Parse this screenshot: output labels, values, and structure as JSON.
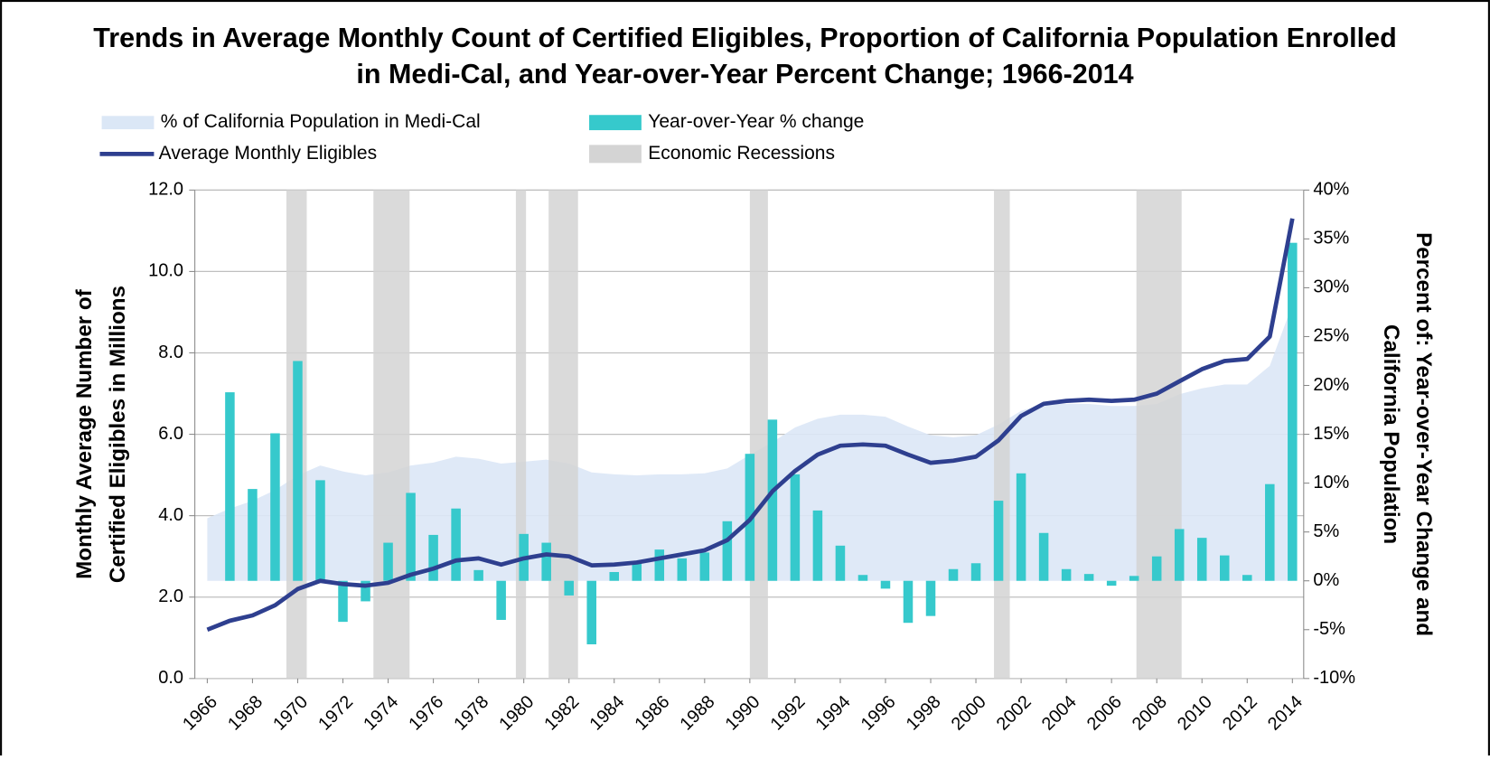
{
  "chart_data": {
    "type": "combo",
    "title": [
      "Trends in Average Monthly Count of Certified Eligibles, Proportion of California Population Enrolled",
      "in Medi-Cal, and Year-over-Year Percent Change; 1966-2014"
    ],
    "y_label": [
      "Monthly Average Number of",
      "Certified Eligibles in Millions"
    ],
    "y2_label": [
      "Percent of: Year-over-Year Change and",
      "California Population"
    ],
    "x": [
      1966,
      1967,
      1968,
      1969,
      1970,
      1971,
      1972,
      1973,
      1974,
      1975,
      1976,
      1977,
      1978,
      1979,
      1980,
      1981,
      1982,
      1983,
      1984,
      1985,
      1986,
      1987,
      1988,
      1989,
      1990,
      1991,
      1992,
      1993,
      1994,
      1995,
      1996,
      1997,
      1998,
      1999,
      2000,
      2001,
      2002,
      2003,
      2004,
      2005,
      2006,
      2007,
      2008,
      2009,
      2010,
      2011,
      2012,
      2013,
      2014
    ],
    "xlim": [
      1965.45,
      2014.5
    ],
    "xticks": [
      1966,
      1968,
      1970,
      1972,
      1974,
      1976,
      1978,
      1980,
      1982,
      1984,
      1986,
      1988,
      1990,
      1992,
      1994,
      1996,
      1998,
      2000,
      2002,
      2004,
      2006,
      2008,
      2010,
      2012,
      2014
    ],
    "ylim": [
      0,
      12
    ],
    "yticks": [
      {
        "value": 0,
        "label": "0.0"
      },
      {
        "value": 2,
        "label": "2.0"
      },
      {
        "value": 4,
        "label": "4.0"
      },
      {
        "value": 6,
        "label": "6.0"
      },
      {
        "value": 8,
        "label": "8.0"
      },
      {
        "value": 10,
        "label": "10.0"
      },
      {
        "value": 12,
        "label": "12.0"
      }
    ],
    "y2lim": [
      -10,
      40
    ],
    "y2ticks": [
      {
        "value": -10,
        "label": "-10%"
      },
      {
        "value": -5,
        "label": "-5%"
      },
      {
        "value": 0,
        "label": "0%"
      },
      {
        "value": 5,
        "label": "5%"
      },
      {
        "value": 10,
        "label": "10%"
      },
      {
        "value": 15,
        "label": "15%"
      },
      {
        "value": 20,
        "label": "20%"
      },
      {
        "value": 25,
        "label": "25%"
      },
      {
        "value": 30,
        "label": "30%"
      },
      {
        "value": 35,
        "label": "35%"
      },
      {
        "value": 40,
        "label": "40%"
      }
    ],
    "grid": true,
    "series": [
      {
        "name": "% of California Population in Medi-Cal",
        "type": "area",
        "axis": "y2",
        "color": "#dbe7f6",
        "values": [
          6.4,
          7.4,
          8.2,
          9.3,
          10.8,
          11.8,
          11.2,
          10.8,
          11.1,
          11.8,
          12.1,
          12.7,
          12.5,
          12.0,
          12.2,
          12.4,
          12.0,
          11.1,
          10.9,
          10.8,
          10.9,
          10.9,
          11.0,
          11.5,
          12.9,
          14.2,
          15.7,
          16.6,
          17.0,
          17.0,
          16.8,
          15.8,
          14.9,
          14.7,
          14.9,
          16.0,
          17.4,
          18.1,
          18.1,
          18.1,
          17.9,
          17.9,
          18.1,
          19.1,
          19.7,
          20.1,
          20.1,
          22.0,
          28.3
        ]
      },
      {
        "name": "Year-over-Year % change",
        "type": "bar",
        "axis": "y2",
        "color": "#36c9cc",
        "values": [
          null,
          19.3,
          9.4,
          15.1,
          22.5,
          10.3,
          -4.2,
          -2.1,
          3.9,
          9.0,
          4.7,
          7.4,
          1.1,
          -4.0,
          4.8,
          3.9,
          -1.5,
          -6.5,
          0.9,
          1.8,
          3.2,
          2.3,
          2.9,
          6.1,
          13.0,
          16.5,
          10.9,
          7.2,
          3.6,
          0.6,
          -0.8,
          -4.3,
          -3.6,
          1.2,
          1.8,
          8.2,
          11.0,
          4.9,
          1.2,
          0.7,
          -0.5,
          0.5,
          2.5,
          5.3,
          4.4,
          2.6,
          0.6,
          9.9,
          34.6
        ]
      },
      {
        "name": "Average Monthly Eligibles",
        "type": "line",
        "axis": "y",
        "color": "#2e3f8f",
        "values": [
          1.2,
          1.42,
          1.55,
          1.8,
          2.2,
          2.4,
          2.32,
          2.28,
          2.35,
          2.55,
          2.7,
          2.9,
          2.95,
          2.8,
          2.95,
          3.05,
          3.0,
          2.78,
          2.8,
          2.85,
          2.95,
          3.05,
          3.15,
          3.4,
          3.9,
          4.6,
          5.1,
          5.5,
          5.72,
          5.75,
          5.72,
          5.5,
          5.3,
          5.35,
          5.45,
          5.85,
          6.45,
          6.75,
          6.82,
          6.85,
          6.82,
          6.85,
          7.0,
          7.3,
          7.6,
          7.8,
          7.85,
          8.4,
          11.3
        ]
      }
    ],
    "recessions": {
      "name": "Economic Recessions",
      "color": "#d4d4d4",
      "periods": [
        [
          1969.5,
          1970.4
        ],
        [
          1973.35,
          1974.95
        ],
        [
          1979.65,
          1980.1
        ],
        [
          1981.1,
          1982.4
        ],
        [
          1990.0,
          1990.8
        ],
        [
          2000.8,
          2001.5
        ],
        [
          2007.1,
          2009.1
        ]
      ]
    }
  }
}
